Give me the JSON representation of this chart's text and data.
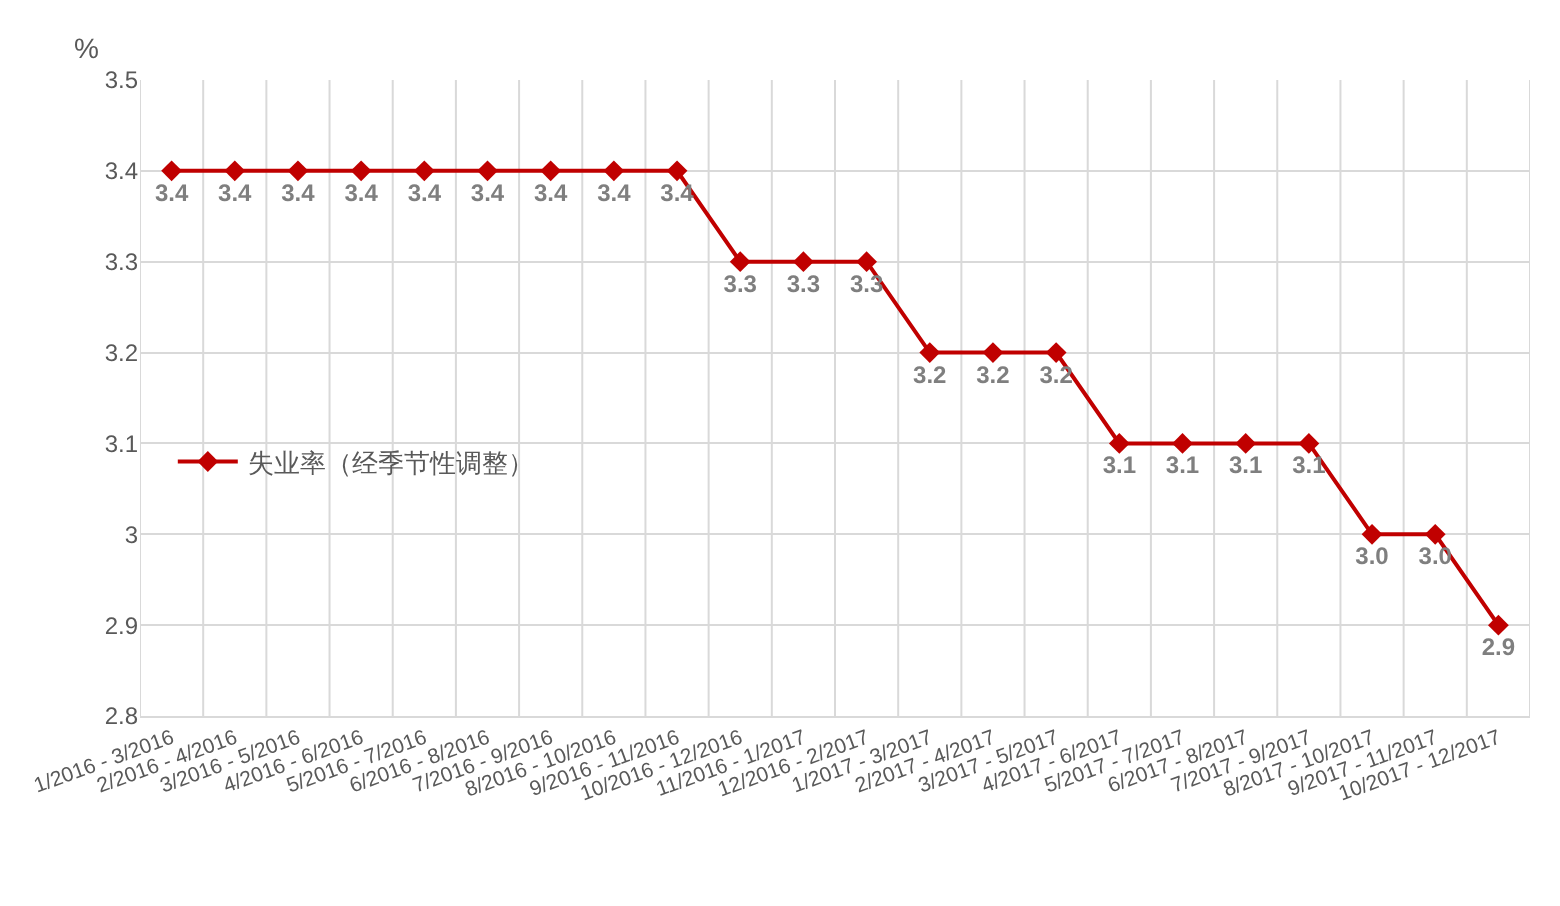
{
  "chart_data": {
    "type": "line",
    "ylabel": "%",
    "categories": [
      "1/2016 - 3/2016",
      "2/2016 - 4/2016",
      "3/2016 - 5/2016",
      "4/2016 - 6/2016",
      "5/2016 - 7/2016",
      "6/2016 - 8/2016",
      "7/2016 - 9/2016",
      "8/2016 - 10/2016",
      "9/2016 - 11/2016",
      "10/2016 - 12/2016",
      "11/2016 - 1/2017",
      "12/2016 - 2/2017",
      "1/2017 - 3/2017",
      "2/2017 - 4/2017",
      "3/2017 - 5/2017",
      "4/2017 - 6/2017",
      "5/2017 - 7/2017",
      "6/2017 - 8/2017",
      "7/2017 - 9/2017",
      "8/2017 - 10/2017",
      "9/2017 - 11/2017",
      "10/2017 - 12/2017"
    ],
    "series": [
      {
        "name": "失业率（经季节性调整）",
        "color": "#c00000",
        "values": [
          3.4,
          3.4,
          3.4,
          3.4,
          3.4,
          3.4,
          3.4,
          3.4,
          3.4,
          3.3,
          3.3,
          3.3,
          3.2,
          3.2,
          3.2,
          3.1,
          3.1,
          3.1,
          3.1,
          3.0,
          3.0,
          2.9
        ],
        "value_labels": [
          "3.4",
          "3.4",
          "3.4",
          "3.4",
          "3.4",
          "3.4",
          "3.4",
          "3.4",
          "3.4",
          "3.3",
          "3.3",
          "3.3",
          "3.2",
          "3.2",
          "3.2",
          "3.1",
          "3.1",
          "3.1",
          "3.1",
          "3.0",
          "3.0",
          "2.9"
        ]
      }
    ],
    "ylim": [
      2.8,
      3.5
    ],
    "yticks": [
      2.8,
      2.9,
      3,
      3.1,
      3.2,
      3.3,
      3.4,
      3.5
    ],
    "grid": true,
    "legend": "left",
    "marker": "diamond",
    "line_style": "solid"
  }
}
